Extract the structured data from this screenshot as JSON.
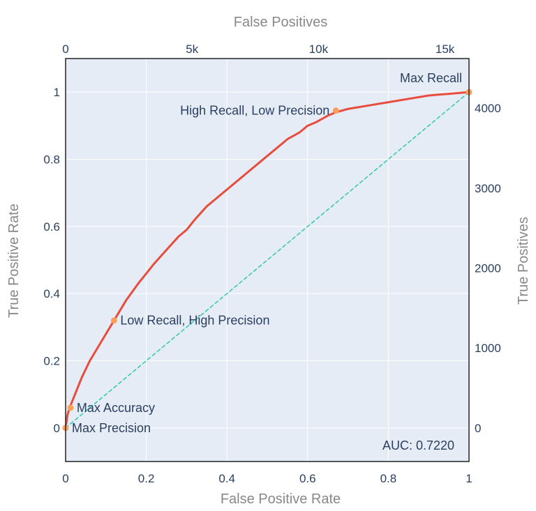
{
  "chart_data": {
    "type": "line",
    "xlabel": "False Positive Rate",
    "ylabel": "True Positive Rate",
    "x2label": "False Positives",
    "y2label": "True Positives",
    "xlim": [
      0,
      1
    ],
    "ylim": [
      -0.1,
      1.1
    ],
    "x2lim": [
      0,
      15950
    ],
    "y2lim": [
      -420,
      4620
    ],
    "xticks": [
      {
        "v": 0,
        "label": "0"
      },
      {
        "v": 0.2,
        "label": "0.2"
      },
      {
        "v": 0.4,
        "label": "0.4"
      },
      {
        "v": 0.6,
        "label": "0.6"
      },
      {
        "v": 0.8,
        "label": "0.8"
      },
      {
        "v": 1,
        "label": "1"
      }
    ],
    "yticks": [
      {
        "v": 0,
        "label": "0"
      },
      {
        "v": 0.2,
        "label": "0.2"
      },
      {
        "v": 0.4,
        "label": "0.4"
      },
      {
        "v": 0.6,
        "label": "0.6"
      },
      {
        "v": 0.8,
        "label": "0.8"
      },
      {
        "v": 1,
        "label": "1"
      }
    ],
    "x2ticks": [
      {
        "v": 0,
        "label": "0"
      },
      {
        "v": 5000,
        "label": "5k"
      },
      {
        "v": 10000,
        "label": "10k"
      },
      {
        "v": 15000,
        "label": "15k"
      }
    ],
    "y2ticks": [
      {
        "v": 0,
        "label": "0"
      },
      {
        "v": 1000,
        "label": "1000"
      },
      {
        "v": 2000,
        "label": "2000"
      },
      {
        "v": 3000,
        "label": "3000"
      },
      {
        "v": 4000,
        "label": "4000"
      }
    ],
    "series": [
      {
        "color": "#e74c3c",
        "x": [
          0,
          0.005,
          0.01,
          0.02,
          0.04,
          0.06,
          0.08,
          0.1,
          0.12,
          0.15,
          0.18,
          0.2,
          0.22,
          0.25,
          0.28,
          0.3,
          0.32,
          0.35,
          0.38,
          0.4,
          0.42,
          0.45,
          0.48,
          0.5,
          0.52,
          0.55,
          0.58,
          0.6,
          0.62,
          0.65,
          0.67,
          0.7,
          0.75,
          0.8,
          0.85,
          0.9,
          0.95,
          1.0
        ],
        "y": [
          0,
          0.04,
          0.06,
          0.09,
          0.15,
          0.2,
          0.24,
          0.28,
          0.32,
          0.38,
          0.43,
          0.46,
          0.49,
          0.53,
          0.57,
          0.59,
          0.62,
          0.66,
          0.69,
          0.71,
          0.73,
          0.76,
          0.79,
          0.81,
          0.83,
          0.86,
          0.88,
          0.9,
          0.91,
          0.93,
          0.94,
          0.95,
          0.96,
          0.97,
          0.98,
          0.99,
          0.995,
          1.0
        ]
      },
      {
        "color": "#2bcaa8",
        "style": "dashed",
        "x": [
          0,
          1
        ],
        "y": [
          0,
          1
        ]
      }
    ],
    "points": [
      {
        "name": "Max Precision",
        "x": 0,
        "y": 0
      },
      {
        "name": "Max Accuracy",
        "x": 0.012,
        "y": 0.06
      },
      {
        "name": "Low Recall, High Precision",
        "x": 0.12,
        "y": 0.32
      },
      {
        "name": "High Recall, Low Precision",
        "x": 0.67,
        "y": 0.945
      },
      {
        "name": "Max Recall",
        "x": 1,
        "y": 1
      }
    ],
    "auc_label": "AUC: 0.7220",
    "grid": true,
    "colors": {
      "plot_bg": "#e5ecf6",
      "grid": "#ffffff",
      "point": "#ff9f5a"
    }
  }
}
